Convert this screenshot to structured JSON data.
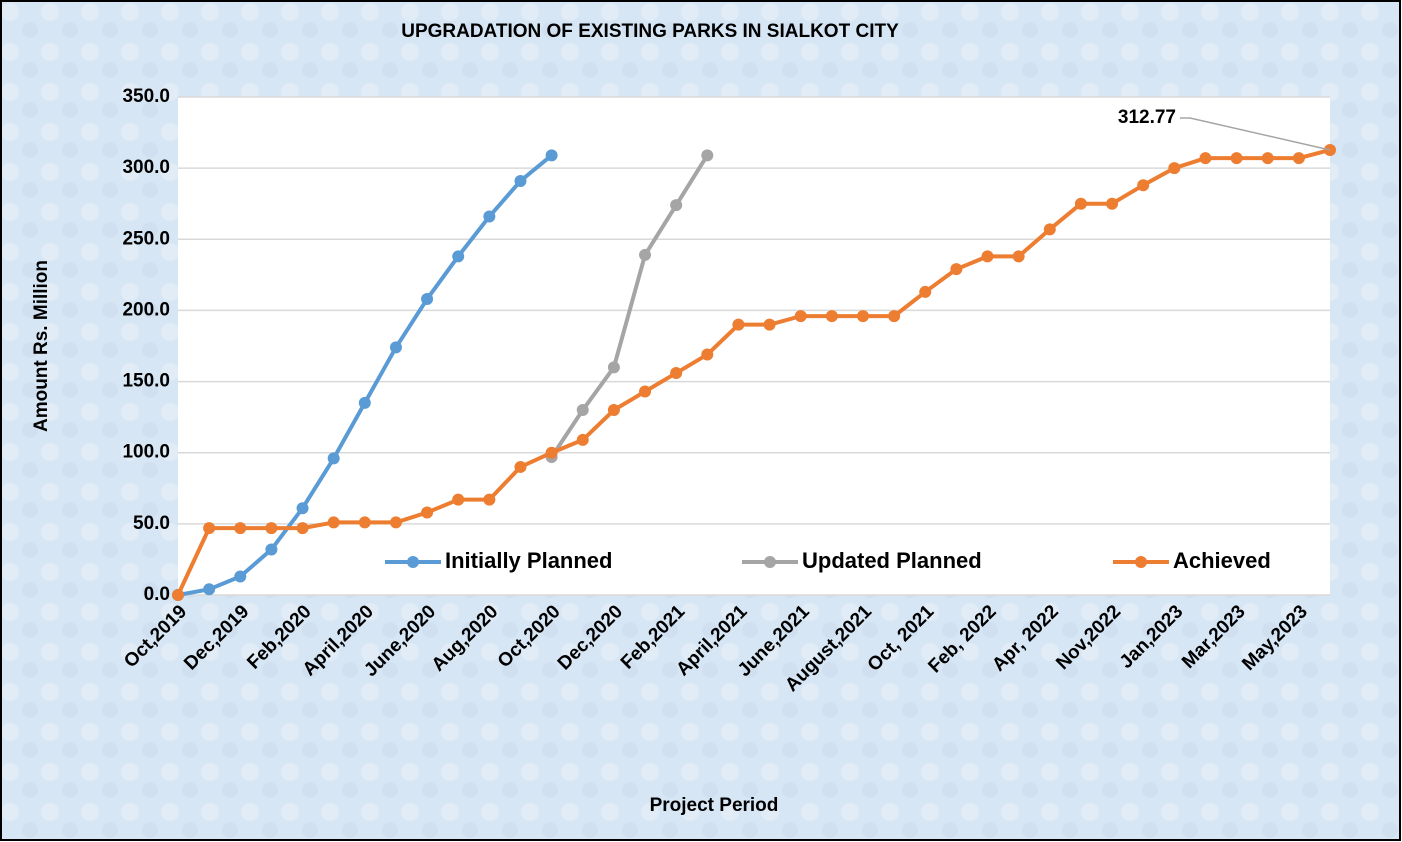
{
  "chart_data": {
    "type": "line",
    "title": "UPGRADATION OF EXISTING PARKS IN SIALKOT CITY",
    "x_label": "Project Period",
    "y_label": "Amount Rs. Million",
    "categories": [
      "Oct,2019",
      null,
      "Dec,2019",
      null,
      "Feb,2020",
      null,
      "April,2020",
      null,
      "June,2020",
      null,
      "Aug,2020",
      null,
      "Oct,2020",
      null,
      "Dec,2020",
      null,
      "Feb,2021",
      null,
      "April,2021",
      null,
      "June,2021",
      null,
      "August,2021",
      null,
      "Oct, 2021",
      null,
      "Feb, 2022",
      null,
      "Apr, 2022",
      null,
      "Nov,2022",
      null,
      "Jan,2023",
      null,
      "Mar,2023",
      null,
      "May,2023",
      null
    ],
    "series": [
      {
        "name": "Initially Planned",
        "color": "#5b9bd5",
        "values": [
          0,
          4,
          13,
          32,
          61,
          96,
          135,
          174,
          208,
          238,
          266,
          291,
          309,
          null,
          null,
          null,
          null,
          null,
          null,
          null,
          null,
          null,
          null,
          null,
          null,
          null,
          null,
          null,
          null,
          null,
          null,
          null,
          null,
          null,
          null,
          null,
          null,
          null
        ]
      },
      {
        "name": "Updated Planned",
        "color": "#a5a5a5",
        "values": [
          null,
          null,
          null,
          null,
          null,
          null,
          null,
          null,
          null,
          null,
          null,
          null,
          97,
          130,
          160,
          239,
          274,
          309,
          null,
          null,
          null,
          null,
          null,
          null,
          null,
          null,
          null,
          null,
          null,
          null,
          null,
          null,
          null,
          null,
          null,
          null,
          null,
          null
        ]
      },
      {
        "name": "Achieved",
        "color": "#ed7d31",
        "values": [
          0,
          47,
          47,
          47,
          47,
          51,
          51,
          51,
          58,
          67,
          67,
          90,
          100,
          109,
          130,
          143,
          156,
          169,
          190,
          190,
          196,
          196,
          196,
          196,
          213,
          229,
          238,
          238,
          257,
          275,
          275,
          288,
          300,
          307,
          307,
          307,
          307,
          312.77
        ]
      }
    ],
    "annotations": [
      {
        "series": 2,
        "index": 37,
        "label": "312.77"
      }
    ],
    "ylim": [
      0,
      350
    ],
    "yticks": [
      {
        "value": 0,
        "label": "0.0"
      },
      {
        "value": 50,
        "label": "50.0"
      },
      {
        "value": 100,
        "label": "100.0"
      },
      {
        "value": 150,
        "label": "150.0"
      },
      {
        "value": 200,
        "label": "200.0"
      },
      {
        "value": 250,
        "label": "250.0"
      },
      {
        "value": 300,
        "label": "300.0"
      },
      {
        "value": 350,
        "label": "350.0"
      }
    ],
    "grid": true,
    "legend": "bottom"
  }
}
